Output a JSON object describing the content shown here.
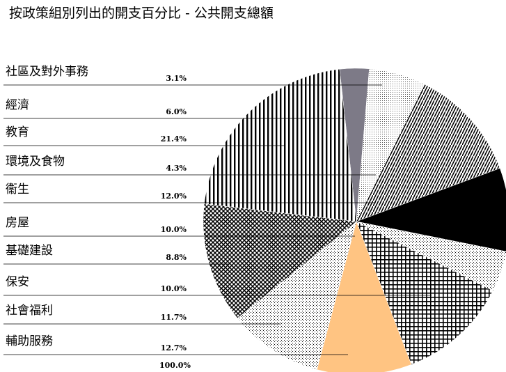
{
  "title": "按政策組別列出的開支百分比 - 公共開支總額",
  "chart_data": {
    "type": "pie",
    "title": "按政策組別列出的開支百分比 - 公共開支總額",
    "categories": [
      "社區及對外事務",
      "經濟",
      "教育",
      "環境及食物",
      "衞生",
      "房屋",
      "基礎建設",
      "保安",
      "社會福利",
      "輔助服務"
    ],
    "values": [
      3.1,
      6.0,
      21.4,
      4.3,
      12.0,
      10.0,
      8.8,
      10.0,
      11.7,
      12.7
    ],
    "labels": [
      "3.1%",
      "6.0%",
      "21.4%",
      "4.3%",
      "12.0%",
      "10.0%",
      "8.8%",
      "10.0%",
      "11.7%",
      "12.7%"
    ],
    "total_label": "100.0%",
    "legend": "left",
    "fills": [
      "#7d7a87",
      "#ffffff",
      "#ffffff",
      "#ffffff",
      "#ffffff",
      "#ffffff",
      "#000000",
      "#ffc482",
      "#ffffff",
      "#ffffff"
    ]
  }
}
